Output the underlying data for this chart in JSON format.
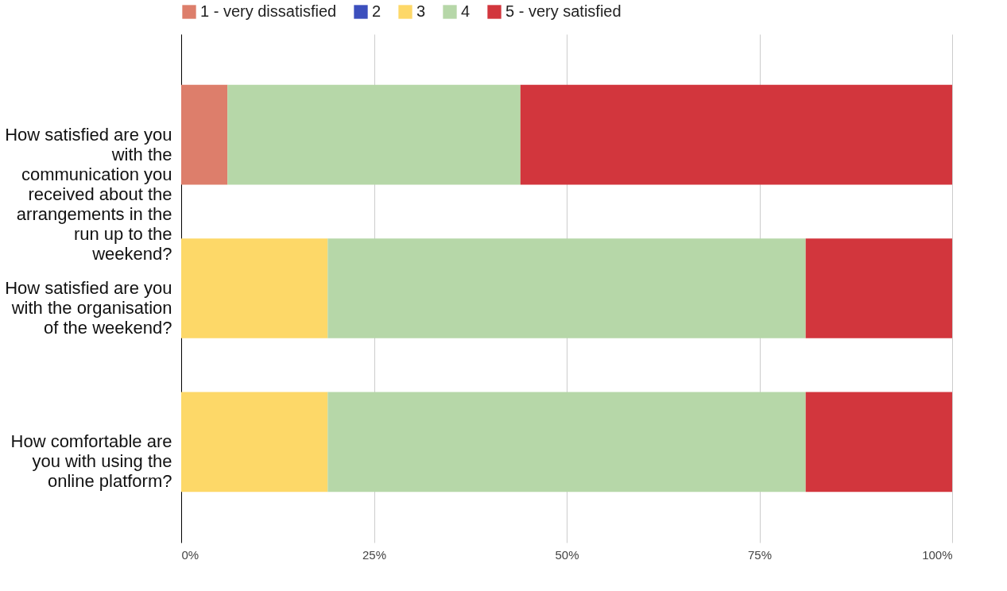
{
  "chart_data": {
    "type": "bar",
    "orientation": "horizontal",
    "stacked": true,
    "categories": [
      "How satisfied are you with the communication you received about the arrangements in the run up to the weekend?",
      "How satisfied are you with the organisation of the weekend?",
      "How comfortable are you with using the online platform?"
    ],
    "series": [
      {
        "name": "1 - very dissatisfied",
        "color": "#dd7e6b",
        "values": [
          6,
          0,
          0
        ]
      },
      {
        "name": "2",
        "color": "#3c4fbd",
        "values": [
          0,
          0,
          0
        ]
      },
      {
        "name": "3",
        "color": "#fdd868",
        "values": [
          0,
          19,
          19
        ]
      },
      {
        "name": "4",
        "color": "#b6d7a8",
        "values": [
          38,
          62,
          62
        ]
      },
      {
        "name": "5 - very satisfied",
        "color": "#d2363d",
        "values": [
          56,
          19,
          19
        ]
      }
    ],
    "xlim": [
      0,
      100
    ],
    "xticks": [
      {
        "value": 0,
        "label": "0%"
      },
      {
        "value": 25,
        "label": "25%"
      },
      {
        "value": 50,
        "label": "50%"
      },
      {
        "value": 75,
        "label": "75%"
      },
      {
        "value": 100,
        "label": "100%"
      }
    ],
    "grid": "x",
    "legend": "top"
  }
}
